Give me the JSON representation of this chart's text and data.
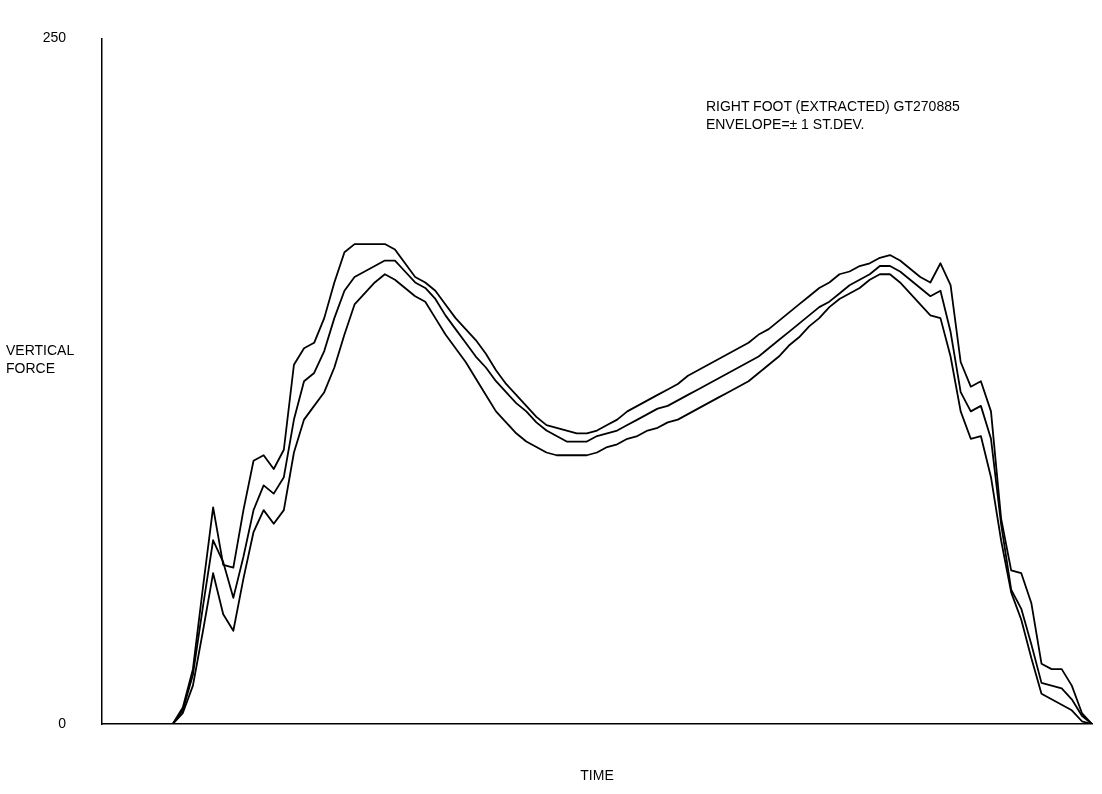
{
  "chart_data": {
    "type": "line",
    "xlabel": "TIME",
    "ylabel": "VERTICAL FORCE",
    "annotations": [
      "RIGHT FOOT (EXTRACTED) GT270885",
      "ENVELOPE=± 1 ST.DEV."
    ],
    "categories": [
      null,
      null,
      null,
      null,
      null,
      null,
      null,
      null,
      null,
      null,
      null,
      null,
      null,
      null,
      null,
      null,
      null,
      null,
      null,
      null,
      null,
      null,
      null,
      null,
      null,
      null,
      null,
      null,
      null,
      null,
      null,
      null,
      null,
      null,
      null,
      null,
      null,
      null,
      null,
      null,
      null,
      null,
      null,
      null,
      null,
      null,
      null,
      null,
      null,
      null,
      null,
      null,
      null,
      null,
      null,
      null,
      null,
      null,
      null,
      null,
      null,
      null,
      null,
      null,
      null,
      null,
      null,
      null,
      null,
      null,
      null,
      null,
      null,
      null,
      null,
      null,
      null,
      null,
      null,
      null,
      null,
      null,
      null,
      null,
      null,
      null,
      null,
      null,
      null,
      null,
      null,
      null,
      null,
      null,
      null,
      null,
      null,
      null,
      null
    ],
    "series": [
      {
        "color": "#000000",
        "values": [
          0,
          0,
          0,
          0,
          0,
          0,
          0,
          0,
          6,
          20,
          50,
          79,
          58,
          57,
          78,
          96,
          98,
          93,
          100,
          131,
          137,
          139,
          148,
          161,
          172,
          175,
          175,
          175,
          175,
          173,
          168,
          163,
          161,
          158,
          153,
          148,
          144,
          140,
          135,
          129,
          124,
          120,
          116,
          112,
          109,
          108,
          107,
          106,
          106,
          107,
          109,
          111,
          114,
          116,
          118,
          120,
          122,
          124,
          127,
          129,
          131,
          133,
          135,
          137,
          139,
          142,
          144,
          147,
          150,
          153,
          156,
          159,
          161,
          164,
          165,
          167,
          168,
          170,
          171,
          169,
          166,
          163,
          161,
          168,
          160,
          132,
          123,
          125,
          114,
          75,
          56,
          55,
          44,
          22,
          20,
          20,
          14,
          4,
          0
        ]
      },
      {
        "color": "#000000",
        "values": [
          0,
          0,
          0,
          0,
          0,
          0,
          0,
          0,
          5,
          18,
          43,
          67,
          59,
          46,
          61,
          78,
          87,
          84,
          90,
          111,
          125,
          128,
          136,
          148,
          158,
          163,
          165,
          167,
          169,
          169,
          165,
          161,
          159,
          155,
          149,
          144,
          139,
          134,
          130,
          125,
          121,
          117,
          114,
          110,
          107,
          105,
          103,
          103,
          103,
          105,
          106,
          107,
          109,
          111,
          113,
          115,
          116,
          118,
          120,
          122,
          124,
          126,
          128,
          130,
          132,
          134,
          137,
          140,
          143,
          146,
          149,
          152,
          154,
          157,
          160,
          162,
          164,
          167,
          167,
          165,
          162,
          159,
          156,
          158,
          143,
          121,
          114,
          116,
          104,
          73,
          49,
          42,
          29,
          15,
          14,
          13,
          9,
          3,
          0
        ]
      },
      {
        "color": "#000000",
        "values": [
          0,
          0,
          0,
          0,
          0,
          0,
          0,
          0,
          4,
          14,
          34,
          55,
          40,
          34,
          53,
          70,
          78,
          73,
          78,
          99,
          111,
          116,
          121,
          130,
          142,
          153,
          157,
          161,
          164,
          162,
          159,
          156,
          154,
          148,
          142,
          137,
          132,
          126,
          120,
          114,
          110,
          106,
          103,
          101,
          99,
          98,
          98,
          98,
          98,
          99,
          101,
          102,
          104,
          105,
          107,
          108,
          110,
          111,
          113,
          115,
          117,
          119,
          121,
          123,
          125,
          128,
          131,
          134,
          138,
          141,
          145,
          148,
          152,
          155,
          157,
          159,
          162,
          164,
          164,
          161,
          157,
          153,
          149,
          148,
          134,
          114,
          104,
          105,
          90,
          67,
          48,
          38,
          24,
          11,
          9,
          7,
          5,
          1,
          0
        ]
      }
    ],
    "ylim": [
      0,
      250
    ],
    "yticks": [
      0,
      250
    ],
    "tick_labels": "y",
    "grid": false,
    "legend": false,
    "marker": "none",
    "line_style": "solid"
  }
}
